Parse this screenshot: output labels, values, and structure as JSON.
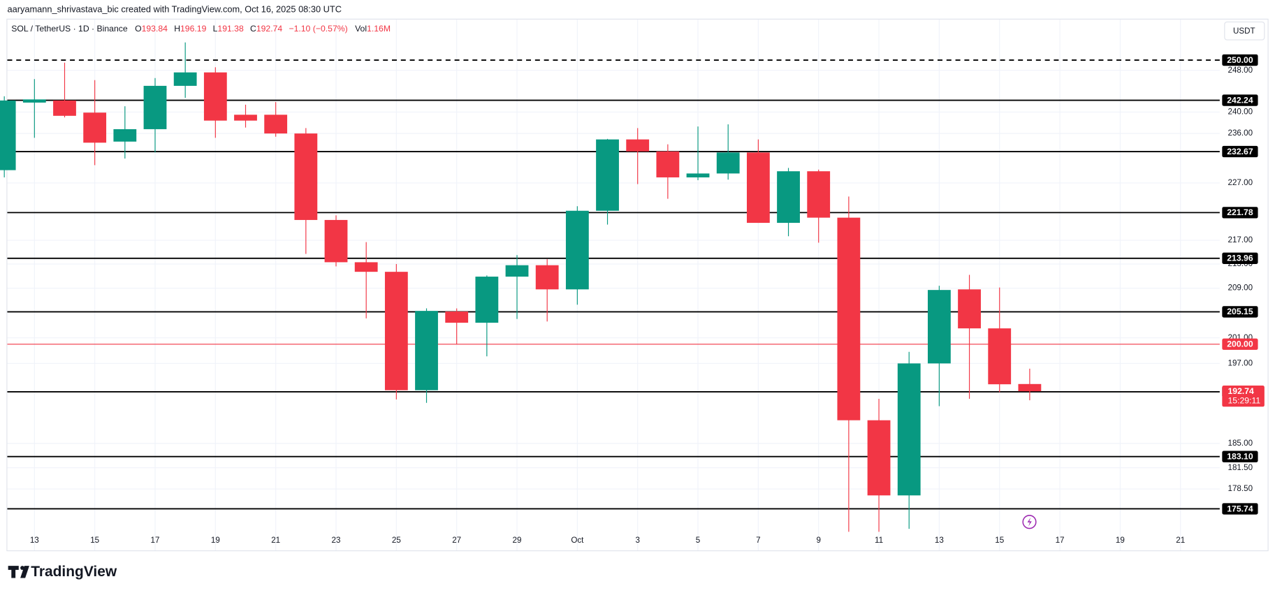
{
  "header": {
    "attribution": "aaryamann_shrivastava_bic created with TradingView.com, Oct 16, 2025 08:30 UTC"
  },
  "chart_data": {
    "type": "candlestick",
    "symbol": "SOL / TetherUS · 1D · Binance",
    "legend_labels": {
      "open": "O",
      "high": "H",
      "low": "L",
      "close": "C",
      "volume": "Vol"
    },
    "change": "−1.10 (−0.57%)",
    "volume": "1.16M",
    "currency": "USDT",
    "countdown": "15:29:11",
    "logo": "TradingView",
    "up_color": "#089981",
    "down_color": "#f23645",
    "log_scale": true,
    "grid": true,
    "x": [
      12,
      13,
      14,
      15,
      16,
      17,
      18,
      19,
      20,
      21,
      22,
      23,
      24,
      25,
      26,
      27,
      28,
      29,
      30,
      31,
      32,
      33,
      34,
      35,
      36,
      37,
      38,
      39,
      40,
      41,
      42,
      43,
      44,
      45,
      46
    ],
    "open": [
      229.3,
      241.8,
      242.2,
      239.9,
      234.5,
      236.8,
      245.0,
      247.6,
      239.5,
      239.5,
      236.0,
      220.5,
      213.3,
      211.7,
      192.9,
      205.2,
      203.4,
      210.9,
      212.8,
      208.8,
      222.1,
      234.9,
      232.7,
      228.0,
      228.7,
      232.5,
      220.0,
      229.1,
      220.9,
      188.4,
      177.6,
      197.0,
      208.8,
      202.5,
      193.84
    ],
    "high": [
      243.0,
      246.3,
      249.5,
      246.1,
      241.1,
      246.5,
      253.5,
      248.6,
      241.4,
      241.9,
      237.0,
      221.3,
      216.7,
      213.0,
      205.7,
      205.7,
      211.1,
      214.5,
      213.8,
      222.9,
      235.0,
      237.0,
      234.0,
      237.3,
      237.7,
      234.9,
      229.7,
      229.4,
      224.6,
      191.6,
      198.8,
      209.4,
      211.2,
      209.1,
      196.19
    ],
    "low": [
      228.0,
      235.2,
      239.0,
      230.2,
      231.4,
      232.5,
      242.7,
      235.2,
      237.1,
      235.4,
      214.7,
      212.6,
      204.1,
      191.5,
      191.0,
      200.0,
      198.1,
      204.0,
      203.6,
      206.3,
      219.7,
      226.8,
      224.2,
      227.5,
      227.6,
      220.0,
      217.7,
      216.6,
      172.6,
      172.6,
      173.0,
      190.5,
      191.6,
      192.6,
      191.38
    ],
    "close": [
      242.2,
      242.4,
      239.3,
      234.3,
      236.8,
      245.0,
      247.6,
      238.4,
      238.4,
      236.0,
      220.5,
      213.3,
      211.7,
      192.9,
      205.3,
      203.4,
      210.9,
      212.8,
      208.8,
      222.1,
      234.9,
      232.7,
      228.0,
      228.7,
      232.5,
      220.0,
      229.1,
      220.9,
      188.4,
      177.6,
      197.0,
      208.7,
      202.5,
      193.8,
      192.74
    ],
    "xlim": [
      12.1,
      52.3
    ],
    "xticks": [
      13,
      15,
      17,
      19,
      21,
      23,
      25,
      27,
      29,
      {
        "value": 31,
        "label": "Oct"
      },
      {
        "value": 33,
        "label": "3"
      },
      {
        "value": 35,
        "label": "5"
      },
      {
        "value": 37,
        "label": "7"
      },
      {
        "value": 39,
        "label": "9"
      },
      {
        "value": 41,
        "label": "11"
      },
      {
        "value": 43,
        "label": "13"
      },
      {
        "value": 45,
        "label": "15"
      },
      {
        "value": 47,
        "label": "17"
      },
      {
        "value": 49,
        "label": "19"
      },
      {
        "value": 51,
        "label": "21"
      }
    ],
    "ylim": [
      172.5,
      258.1
    ],
    "yticks": [
      {
        "value": 248,
        "label": "248.00"
      },
      {
        "value": 240,
        "label": "240.00"
      },
      {
        "value": 236,
        "label": "236.00"
      },
      {
        "value": 227,
        "label": "227.00"
      },
      {
        "value": 217,
        "label": "217.00"
      },
      {
        "value": 213,
        "label": "213.00"
      },
      {
        "value": 209,
        "label": "209.00"
      },
      {
        "value": 201,
        "label": "201.00"
      },
      {
        "value": 197,
        "label": "197.00"
      },
      {
        "value": 185,
        "label": "185.00"
      },
      {
        "value": 181.5,
        "label": "181.50"
      },
      {
        "value": 178.5,
        "label": "178.50"
      }
    ],
    "levels": [
      {
        "value": 250,
        "label": "250.00",
        "style": "dashed",
        "color": "#000000"
      },
      {
        "value": 242.24,
        "style": "solid",
        "color": "#000000"
      },
      {
        "value": 232.67,
        "style": "solid",
        "color": "#000000"
      },
      {
        "value": 221.78,
        "style": "solid",
        "color": "#000000"
      },
      {
        "value": 213.96,
        "style": "solid",
        "color": "#000000"
      },
      {
        "value": 205.15,
        "style": "solid",
        "color": "#000000"
      },
      {
        "value": 200,
        "label": "200.00",
        "style": "solid",
        "color": "#f23645"
      },
      {
        "value": 192.66,
        "style": "solid",
        "color": "#000000"
      },
      {
        "value": 183.1,
        "label": "183.10",
        "style": "solid",
        "color": "#000000"
      },
      {
        "value": 175.74,
        "style": "solid",
        "color": "#000000"
      }
    ]
  }
}
